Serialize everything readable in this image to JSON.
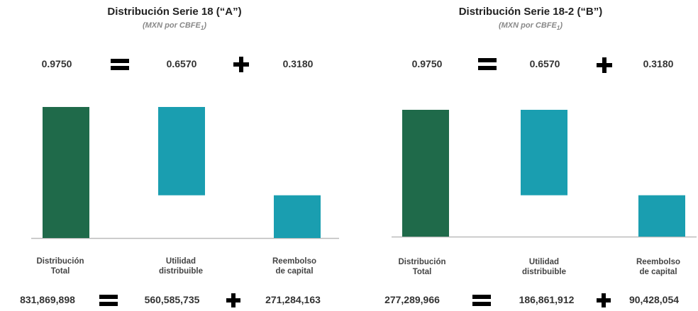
{
  "colors": {
    "total": "#1f6a4a",
    "component": "#1a9eb0",
    "baseline": "#bbbbbb"
  },
  "operators": {
    "equals": "equals-icon",
    "plus": "plus-icon"
  },
  "chart_data": [
    {
      "type": "bar",
      "title": "Distribución Serie 18 (“A”)",
      "subtitle": "(MXN por CBFE",
      "subtitle_sub": "1",
      "subtitle_end": ")",
      "categories": [
        "Distribución Total",
        "Utilidad distribuible",
        "Reembolso de capital"
      ],
      "category_lines": [
        [
          "Distribución",
          "Total"
        ],
        [
          "Utilidad",
          "distribuible"
        ],
        [
          "Reembolso",
          "de capital"
        ]
      ],
      "values": [
        0.975,
        0.657,
        0.318
      ],
      "top_labels": [
        "0.9750",
        "0.6570",
        "0.3180"
      ],
      "totals": [
        "831,869,898",
        "560,585,735",
        "271,284,163"
      ],
      "ylim": [
        0,
        0.975
      ]
    },
    {
      "type": "bar",
      "title": "Distribución Serie 18-2 (“B”)",
      "subtitle": "(MXN por CBFE",
      "subtitle_sub": "1",
      "subtitle_end": ")",
      "categories": [
        "Distribución Total",
        "Utilidad distribuible",
        "Reembolso de capital"
      ],
      "category_lines": [
        [
          "Distribución",
          "Total"
        ],
        [
          "Utilidad",
          "distribuible"
        ],
        [
          "Reembolso",
          "de capital"
        ]
      ],
      "values": [
        0.975,
        0.657,
        0.318
      ],
      "top_labels": [
        "0.9750",
        "0.6570",
        "0.3180"
      ],
      "totals": [
        "277,289,966",
        "186,861,912",
        "90,428,054"
      ],
      "ylim": [
        0,
        0.975
      ]
    }
  ]
}
